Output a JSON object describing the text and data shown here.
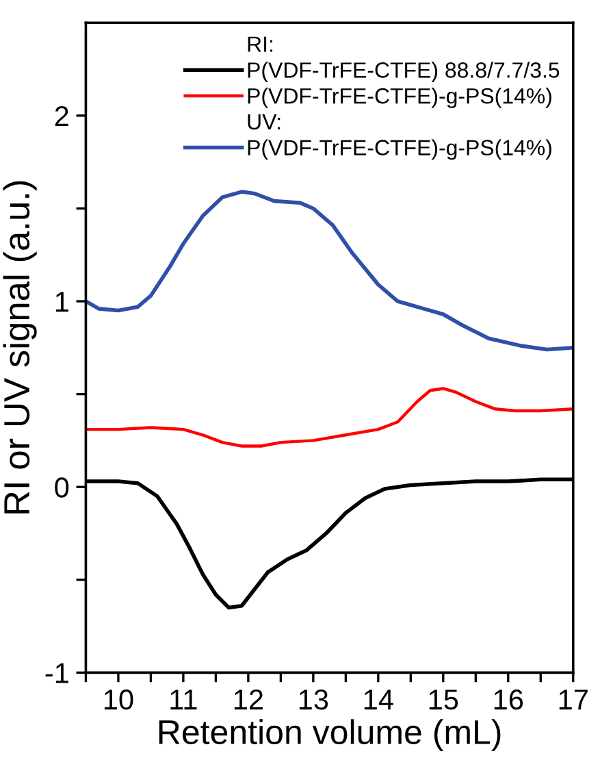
{
  "chart_data": {
    "type": "line",
    "xlabel": "Retention volume (mL)",
    "ylabel": "RI or UV signal (a.u.)",
    "xlim": [
      9.5,
      17
    ],
    "ylim": [
      -1,
      2.5
    ],
    "xticks": [
      {
        "value": 9.5,
        "label": null
      },
      10,
      {
        "value": 10.5,
        "label": null
      },
      11,
      {
        "value": 11.5,
        "label": null
      },
      12,
      {
        "value": 12.5,
        "label": null
      },
      13,
      {
        "value": 13.5,
        "label": null
      },
      14,
      {
        "value": 14.5,
        "label": null
      },
      15,
      {
        "value": 15.5,
        "label": null
      },
      16,
      {
        "value": 16.5,
        "label": null
      },
      17
    ],
    "yticks": [
      -1,
      {
        "value": -0.5,
        "label": null
      },
      0,
      {
        "value": 0.5,
        "label": null
      },
      1,
      {
        "value": 1.5,
        "label": null
      },
      2
    ],
    "annotations": [
      "RI:",
      "UV:"
    ],
    "legend": "top right",
    "grid": false,
    "line_style": "solid",
    "series": [
      {
        "name": "P(VDF-TrFE-CTFE) 88.8/7.7/3.5",
        "color": "#000000",
        "x": [
          9.5,
          10.0,
          10.3,
          10.6,
          10.9,
          11.1,
          11.3,
          11.5,
          11.7,
          11.9,
          12.1,
          12.3,
          12.6,
          12.9,
          13.2,
          13.5,
          13.8,
          14.1,
          14.5,
          15.0,
          15.5,
          16.0,
          16.5,
          17.0
        ],
        "values": [
          0.03,
          0.03,
          0.02,
          -0.05,
          -0.2,
          -0.33,
          -0.47,
          -0.58,
          -0.65,
          -0.64,
          -0.55,
          -0.46,
          -0.39,
          -0.34,
          -0.25,
          -0.14,
          -0.06,
          -0.01,
          0.01,
          0.02,
          0.03,
          0.03,
          0.04,
          0.04
        ]
      },
      {
        "name": "P(VDF-TrFE-CTFE)-g-PS(14%)",
        "color": "#ff0000",
        "x": [
          9.5,
          10.0,
          10.5,
          11.0,
          11.3,
          11.6,
          11.9,
          12.2,
          12.5,
          13.0,
          13.5,
          14.0,
          14.3,
          14.6,
          14.8,
          15.0,
          15.2,
          15.5,
          15.8,
          16.1,
          16.5,
          17.0
        ],
        "values": [
          0.31,
          0.31,
          0.32,
          0.31,
          0.28,
          0.24,
          0.22,
          0.22,
          0.24,
          0.25,
          0.28,
          0.31,
          0.35,
          0.46,
          0.52,
          0.53,
          0.51,
          0.46,
          0.42,
          0.41,
          0.41,
          0.42
        ]
      },
      {
        "name": "P(VDF-TrFE-CTFE)-g-PS(14%)",
        "color": "#2f4fa8",
        "x": [
          9.5,
          9.7,
          10.0,
          10.3,
          10.5,
          10.8,
          11.0,
          11.3,
          11.6,
          11.9,
          12.1,
          12.4,
          12.8,
          13.0,
          13.3,
          13.6,
          14.0,
          14.3,
          14.7,
          15.0,
          15.3,
          15.7,
          16.2,
          16.6,
          17.0
        ],
        "values": [
          1.0,
          0.96,
          0.95,
          0.97,
          1.03,
          1.19,
          1.31,
          1.46,
          1.56,
          1.59,
          1.58,
          1.54,
          1.53,
          1.5,
          1.41,
          1.26,
          1.09,
          1.0,
          0.96,
          0.93,
          0.87,
          0.8,
          0.76,
          0.74,
          0.75
        ]
      }
    ]
  }
}
